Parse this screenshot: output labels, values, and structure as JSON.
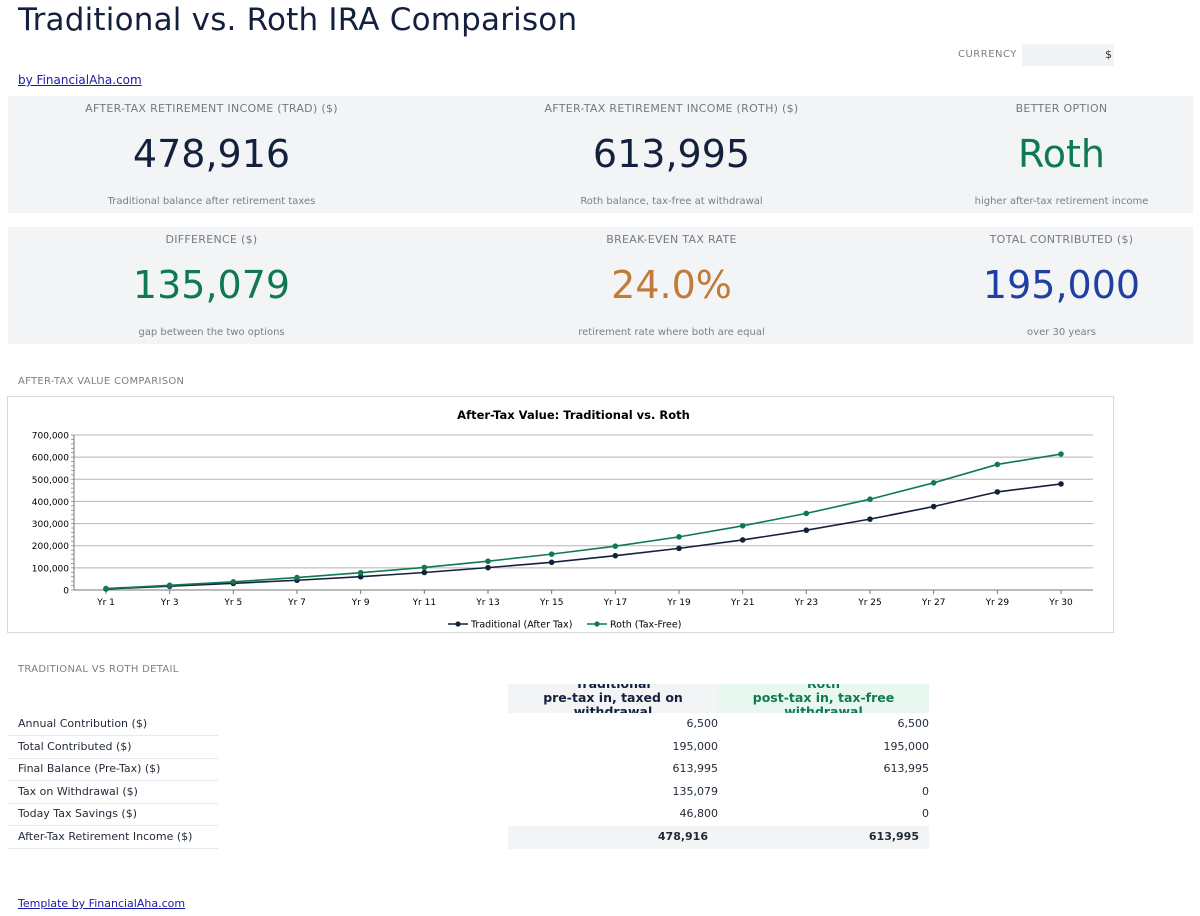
{
  "header": {
    "title": "Traditional vs. Roth IRA Comparison",
    "byline": "by FinancialAha.com",
    "currency_label": "CURRENCY",
    "currency_value": "$"
  },
  "kpis_row1": [
    {
      "label": "AFTER-TAX RETIREMENT INCOME (TRAD) ($)",
      "value": "478,916",
      "sub": "Traditional balance after retirement taxes",
      "color": "#14213d"
    },
    {
      "label": "AFTER-TAX RETIREMENT INCOME (ROTH) ($)",
      "value": "613,995",
      "sub": "Roth balance, tax-free at withdrawal",
      "color": "#14213d"
    },
    {
      "label": "BETTER OPTION",
      "value": "Roth",
      "sub": "higher after-tax retirement income",
      "color": "#0f7a52"
    }
  ],
  "kpis_row2": [
    {
      "label": "DIFFERENCE ($)",
      "value": "135,079",
      "sub": "gap between the two options",
      "color": "#0f7a52"
    },
    {
      "label": "BREAK-EVEN TAX RATE",
      "value": "24.0%",
      "sub": "retirement rate where both are equal",
      "color": "#c27a3a"
    },
    {
      "label": "TOTAL CONTRIBUTED ($)",
      "value": "195,000",
      "sub": "over 30 years",
      "color": "#1f3fa3"
    }
  ],
  "chart_section_label": "AFTER-TAX VALUE COMPARISON",
  "chart_data": {
    "type": "line",
    "title": "After-Tax Value: Traditional vs. Roth",
    "xlabel": "",
    "ylabel": "",
    "ylim": [
      0,
      700000
    ],
    "y_ticks": [
      "0",
      "100,000",
      "200,000",
      "300,000",
      "400,000",
      "500,000",
      "600,000",
      "700,000"
    ],
    "categories": [
      "Yr 1",
      "Yr 3",
      "Yr 5",
      "Yr 7",
      "Yr 9",
      "Yr 11",
      "Yr 13",
      "Yr 15",
      "Yr 17",
      "Yr 19",
      "Yr 21",
      "Yr 23",
      "Yr 25",
      "Yr 27",
      "Yr 29",
      "Yr 30"
    ],
    "series": [
      {
        "name": "Traditional (After Tax)",
        "color": "#14213d",
        "values": [
          5000,
          17000,
          30000,
          44000,
          60000,
          79000,
          101000,
          125000,
          155000,
          188000,
          226000,
          270000,
          320000,
          377000,
          443000,
          478916
        ]
      },
      {
        "name": "Roth (Tax-Free)",
        "color": "#0f7a52",
        "values": [
          6500,
          21000,
          37000,
          56000,
          78000,
          102000,
          130000,
          162000,
          198000,
          240000,
          290000,
          346000,
          410000,
          484000,
          567000,
          613995
        ]
      }
    ],
    "grid": true,
    "legend": "bottom"
  },
  "detail": {
    "section_label": "TRADITIONAL VS ROTH DETAIL",
    "col_trad_header": "Traditional\npre-tax in, taxed on\nwithdrawal",
    "col_roth_header": "Roth\npost-tax in, tax-free\nwithdrawal",
    "rows": [
      {
        "label": "Annual Contribution ($)",
        "trad": "6,500",
        "roth": "6,500"
      },
      {
        "label": "Total Contributed ($)",
        "trad": "195,000",
        "roth": "195,000"
      },
      {
        "label": "Final Balance (Pre-Tax) ($)",
        "trad": "613,995",
        "roth": "613,995"
      },
      {
        "label": "Tax on Withdrawal ($)",
        "trad": "135,079",
        "roth": "0"
      },
      {
        "label": "Today Tax Savings ($)",
        "trad": "46,800",
        "roth": "0"
      }
    ],
    "total_row": {
      "label": "After-Tax Retirement Income ($)",
      "trad": "478,916",
      "roth": "613,995"
    }
  },
  "footer": {
    "link": "Template by FinancialAha.com"
  }
}
